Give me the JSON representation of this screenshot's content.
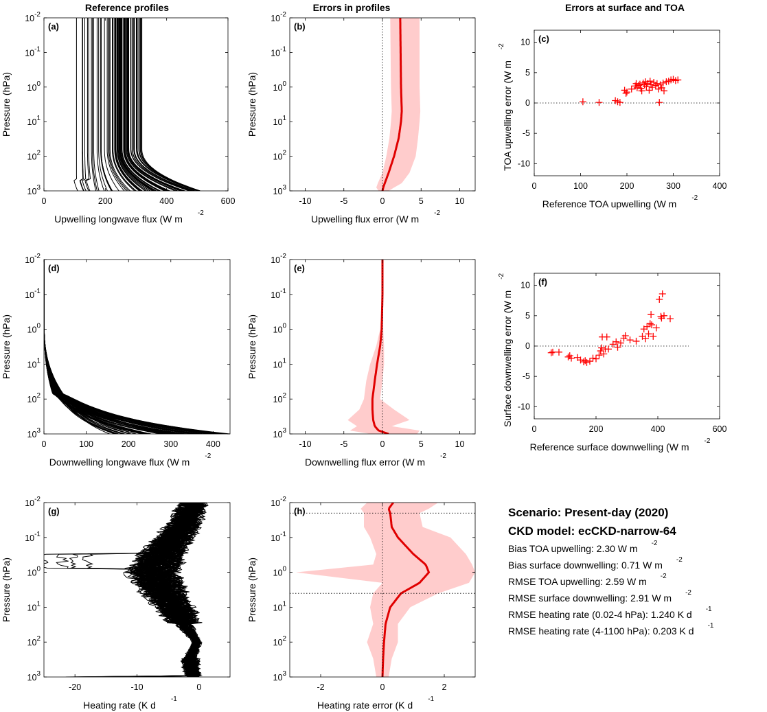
{
  "column_titles": [
    "Reference profiles",
    "Errors in profiles",
    "Errors at surface and TOA"
  ],
  "summary": {
    "scenario": "Scenario: Present-day (2020)",
    "ckd_model": "CKD model: ecCKD-narrow-64",
    "stats": [
      {
        "text": "Bias TOA upwelling: 2.30 W m",
        "sup": "-2"
      },
      {
        "text": "Bias surface downwelling: 0.71 W m",
        "sup": "-2"
      },
      {
        "text": "RMSE TOA upwelling: 2.59 W m",
        "sup": "-2"
      },
      {
        "text": "RMSE surface downwelling: 2.91 W m",
        "sup": "-2"
      },
      {
        "text": "RMSE heating rate (0.02-4 hPa):  1.240 K d",
        "sup": "-1"
      },
      {
        "text": "RMSE heating rate (4-1100 hPa):  0.203 K d",
        "sup": "-1"
      }
    ]
  },
  "colors": {
    "reference": "#000000",
    "error_line": "#e00000",
    "error_band": "#ffcccc",
    "scatter": "#ff0000"
  },
  "chart_data": [
    {
      "id": "a",
      "letter": "(a)",
      "type": "line",
      "style": "profiles",
      "xlabel": "Upwelling longwave flux (W m",
      "xlabel_sup": "-2",
      "ylabel": "Pressure (hPa)",
      "xlim": [
        0,
        600
      ],
      "xticks": [
        0,
        200,
        400,
        600
      ],
      "ylim": [
        0.01,
        1000
      ],
      "yscale": "log",
      "yreverse": true,
      "profile_envelope": {
        "pressure": [
          0.01,
          10,
          100,
          300,
          600,
          800,
          1000
        ],
        "top_values": [
          105,
          130,
          170,
          200,
          220,
          235,
          245,
          255,
          265,
          270,
          280,
          300,
          320
        ],
        "surface_values": [
          105,
          135,
          190,
          250,
          290,
          320,
          350,
          380,
          410,
          440,
          470,
          500,
          510
        ]
      }
    },
    {
      "id": "b",
      "letter": "(b)",
      "type": "line",
      "style": "error",
      "xlabel": "Upwelling flux error (W m",
      "xlabel_sup": "-2",
      "ylabel": "Pressure (hPa)",
      "xlim": [
        -12,
        12
      ],
      "xticks": [
        -10,
        -5,
        0,
        5,
        10
      ],
      "ylim": [
        0.01,
        1000
      ],
      "yscale": "log",
      "yreverse": true,
      "pressure": [
        0.01,
        1,
        5,
        10,
        30,
        100,
        300,
        600,
        800,
        1000
      ],
      "mean": [
        2.3,
        2.4,
        2.5,
        2.4,
        2.1,
        1.5,
        0.8,
        0.3,
        0.1,
        0.0
      ],
      "band_low": [
        1.0,
        1.1,
        1.2,
        1.1,
        0.9,
        0.5,
        0.0,
        -0.6,
        -0.8,
        -0.5
      ],
      "band_high": [
        4.8,
        4.8,
        4.9,
        4.8,
        4.6,
        4.3,
        3.5,
        2.5,
        1.5,
        0.8
      ]
    },
    {
      "id": "c",
      "letter": "(c)",
      "type": "scatter",
      "xlabel": "Reference TOA upwelling (W m",
      "xlabel_sup": "-2",
      "ylabel": "TOA upwelling error (W m",
      "ylabel_sup": "-2",
      "xlim": [
        0,
        400
      ],
      "xticks": [
        0,
        100,
        200,
        300,
        400
      ],
      "ylim": [
        -12,
        12
      ],
      "yticks": [
        -10,
        -5,
        0,
        5,
        10
      ],
      "zero_line_x": [
        0,
        400
      ],
      "points": [
        [
          105,
          0.2
        ],
        [
          140,
          0.1
        ],
        [
          175,
          0.4
        ],
        [
          180,
          0.2
        ],
        [
          185,
          0.1
        ],
        [
          195,
          2.1
        ],
        [
          198,
          1.6
        ],
        [
          200,
          1.8
        ],
        [
          210,
          2.3
        ],
        [
          218,
          2.8
        ],
        [
          220,
          3.2
        ],
        [
          222,
          2.5
        ],
        [
          225,
          2.9
        ],
        [
          228,
          3.1
        ],
        [
          230,
          2.4
        ],
        [
          232,
          2.0
        ],
        [
          235,
          3.3
        ],
        [
          238,
          3.0
        ],
        [
          240,
          3.5
        ],
        [
          242,
          2.7
        ],
        [
          245,
          3.2
        ],
        [
          248,
          2.1
        ],
        [
          250,
          3.6
        ],
        [
          252,
          3.0
        ],
        [
          255,
          2.6
        ],
        [
          258,
          3.4
        ],
        [
          262,
          2.9
        ],
        [
          265,
          3.2
        ],
        [
          268,
          2.3
        ],
        [
          270,
          0.1
        ],
        [
          272,
          3.0
        ],
        [
          275,
          2.5
        ],
        [
          278,
          3.3
        ],
        [
          280,
          2.0
        ],
        [
          285,
          3.5
        ],
        [
          290,
          3.6
        ],
        [
          295,
          3.8
        ],
        [
          300,
          3.9
        ],
        [
          305,
          3.7
        ],
        [
          310,
          3.8
        ]
      ]
    },
    {
      "id": "d",
      "letter": "(d)",
      "type": "line",
      "style": "profiles",
      "xlabel": "Downwelling longwave flux (W m",
      "xlabel_sup": "-2",
      "ylabel": "Pressure (hPa)",
      "xlim": [
        0,
        440
      ],
      "xticks": [
        0,
        100,
        200,
        300,
        400
      ],
      "ylim": [
        0.01,
        1000
      ],
      "yscale": "log",
      "yreverse": true,
      "profile_envelope": {
        "pressure": [
          0.01,
          1,
          10,
          50,
          100,
          200,
          400,
          600,
          800,
          1000
        ],
        "surface_values": [
          150,
          180,
          210,
          240,
          270,
          290,
          310,
          330,
          350,
          370,
          390,
          410,
          430,
          440
        ]
      }
    },
    {
      "id": "e",
      "letter": "(e)",
      "type": "line",
      "style": "error",
      "xlabel": "Downwelling flux error (W m",
      "xlabel_sup": "-2",
      "ylabel": "Pressure (hPa)",
      "xlim": [
        -12,
        12
      ],
      "xticks": [
        -10,
        -5,
        0,
        5,
        10
      ],
      "ylim": [
        0.01,
        1000
      ],
      "yscale": "log",
      "yreverse": true,
      "pressure": [
        0.01,
        0.1,
        1,
        3,
        10,
        30,
        100,
        200,
        400,
        600,
        800,
        1000
      ],
      "mean": [
        0.0,
        0.0,
        -0.1,
        -0.3,
        -0.7,
        -1.0,
        -1.3,
        -1.3,
        -1.2,
        -1.0,
        -0.5,
        0.8
      ],
      "band_low": [
        -0.1,
        -0.1,
        -0.3,
        -0.8,
        -1.6,
        -2.1,
        -2.4,
        -3.0,
        -4.5,
        -3.3,
        -4.2,
        -1.5
      ],
      "band_high": [
        0.1,
        0.1,
        0.1,
        0.2,
        0.2,
        0.0,
        -0.3,
        1.5,
        3.5,
        1.2,
        4.8,
        4.5
      ]
    },
    {
      "id": "f",
      "letter": "(f)",
      "type": "scatter",
      "xlabel": "Reference surface downwelling (W m",
      "xlabel_sup": "-2",
      "ylabel": "Surface downwelling error (W m",
      "ylabel_sup": "-2",
      "xlim": [
        0,
        600
      ],
      "xticks": [
        0,
        200,
        400,
        600
      ],
      "ylim": [
        -12,
        12
      ],
      "yticks": [
        -10,
        -5,
        0,
        5,
        10
      ],
      "zero_line_x": [
        0,
        500
      ],
      "points": [
        [
          55,
          -1.1
        ],
        [
          60,
          -1.0
        ],
        [
          80,
          -1.0
        ],
        [
          110,
          -1.8
        ],
        [
          115,
          -1.6
        ],
        [
          120,
          -2.0
        ],
        [
          140,
          -1.9
        ],
        [
          150,
          -2.3
        ],
        [
          160,
          -2.6
        ],
        [
          165,
          -2.4
        ],
        [
          170,
          -2.7
        ],
        [
          180,
          -2.5
        ],
        [
          190,
          -2.0
        ],
        [
          200,
          -2.1
        ],
        [
          210,
          -1.5
        ],
        [
          215,
          -0.8
        ],
        [
          218,
          -0.3
        ],
        [
          220,
          1.5
        ],
        [
          225,
          -1.3
        ],
        [
          230,
          -0.5
        ],
        [
          235,
          1.5
        ],
        [
          240,
          -0.5
        ],
        [
          255,
          0.3
        ],
        [
          265,
          0.7
        ],
        [
          270,
          -0.2
        ],
        [
          280,
          0.5
        ],
        [
          290,
          1.3
        ],
        [
          295,
          1.7
        ],
        [
          310,
          1.0
        ],
        [
          330,
          0.8
        ],
        [
          350,
          1.6
        ],
        [
          355,
          2.8
        ],
        [
          360,
          1.2
        ],
        [
          365,
          3.2
        ],
        [
          370,
          2.0
        ],
        [
          375,
          3.7
        ],
        [
          378,
          5.2
        ],
        [
          380,
          3.5
        ],
        [
          385,
          1.6
        ],
        [
          395,
          3.0
        ],
        [
          405,
          7.7
        ],
        [
          410,
          4.9
        ],
        [
          412,
          4.6
        ],
        [
          415,
          8.6
        ],
        [
          420,
          5.0
        ],
        [
          440,
          4.5
        ]
      ]
    },
    {
      "id": "g",
      "letter": "(g)",
      "type": "line",
      "style": "profiles",
      "xlabel": "Heating rate (K d",
      "xlabel_sup": "-1",
      "ylabel": "Pressure (hPa)",
      "xlim": [
        -25,
        5
      ],
      "xticks": [
        -20,
        -10,
        0
      ],
      "ylim": [
        0.01,
        1000
      ],
      "yscale": "log",
      "yreverse": true,
      "typical_profile": {
        "pressure": [
          0.01,
          0.03,
          0.1,
          0.3,
          1,
          3,
          10,
          30,
          100,
          300,
          1000
        ],
        "heating_rate": [
          -1.0,
          -2.0,
          -4.0,
          -6.0,
          -7.5,
          -6.0,
          -4.0,
          -2.5,
          -0.3,
          -1.5,
          -1.0
        ]
      },
      "outliers_min": [
        -24.5,
        -22,
        -20.5,
        -18
      ]
    },
    {
      "id": "h",
      "letter": "(h)",
      "type": "line",
      "style": "error",
      "xlabel": "Heating rate error (K d",
      "xlabel_sup": "-1",
      "ylabel": "Pressure (hPa)",
      "xlim": [
        -3,
        3
      ],
      "xticks": [
        -2,
        0,
        2
      ],
      "ylim": [
        0.01,
        1000
      ],
      "yscale": "log",
      "yreverse": true,
      "hlines": [
        0.02,
        4
      ],
      "pressure": [
        0.01,
        0.015,
        0.02,
        0.05,
        0.1,
        0.3,
        0.6,
        1,
        2,
        4,
        10,
        30,
        100,
        300,
        1000
      ],
      "mean": [
        0.35,
        0.2,
        0.25,
        0.3,
        0.5,
        1.0,
        1.4,
        1.5,
        1.2,
        0.6,
        0.25,
        0.1,
        0.05,
        0.02,
        0.0
      ],
      "band_low": [
        -0.5,
        -0.7,
        -0.6,
        -0.6,
        -0.4,
        -0.2,
        -0.3,
        -2.8,
        0.0,
        -0.3,
        -0.4,
        -0.3,
        -0.5,
        -0.3,
        -0.2
      ],
      "band_high": [
        1.8,
        1.5,
        1.2,
        1.3,
        2.2,
        2.7,
        2.9,
        3.0,
        2.8,
        1.8,
        0.9,
        0.5,
        0.5,
        0.3,
        0.2
      ]
    }
  ]
}
